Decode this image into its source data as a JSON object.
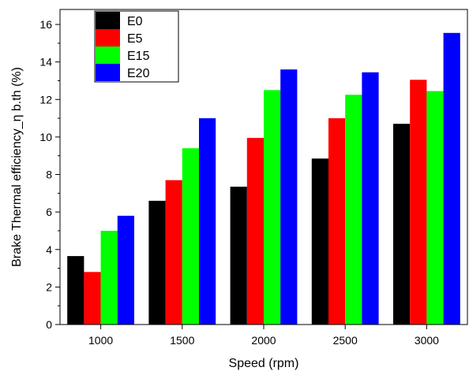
{
  "chart_data": {
    "type": "bar",
    "title": "",
    "xlabel": "Speed (rpm)",
    "ylabel": "Brake Thermal efficiency_η b.th (%)",
    "categories": [
      "1000",
      "1500",
      "2000",
      "2500",
      "3000"
    ],
    "series": [
      {
        "name": "E0",
        "color": "#000000",
        "values": [
          3.65,
          6.6,
          7.35,
          8.85,
          10.7
        ]
      },
      {
        "name": "E5",
        "color": "#ff0000",
        "values": [
          2.8,
          7.7,
          9.95,
          11.0,
          13.05
        ]
      },
      {
        "name": "E15",
        "color": "#00ff00",
        "values": [
          5.0,
          9.4,
          12.5,
          12.25,
          12.45
        ]
      },
      {
        "name": "E20",
        "color": "#0000ff",
        "values": [
          5.8,
          11.0,
          13.6,
          13.45,
          15.55
        ]
      }
    ],
    "ylim": [
      0,
      16.8
    ],
    "yticks": [
      "0",
      "2",
      "4",
      "6",
      "8",
      "10",
      "12",
      "14",
      "16"
    ],
    "grid": false,
    "legend_position": "top-left"
  }
}
